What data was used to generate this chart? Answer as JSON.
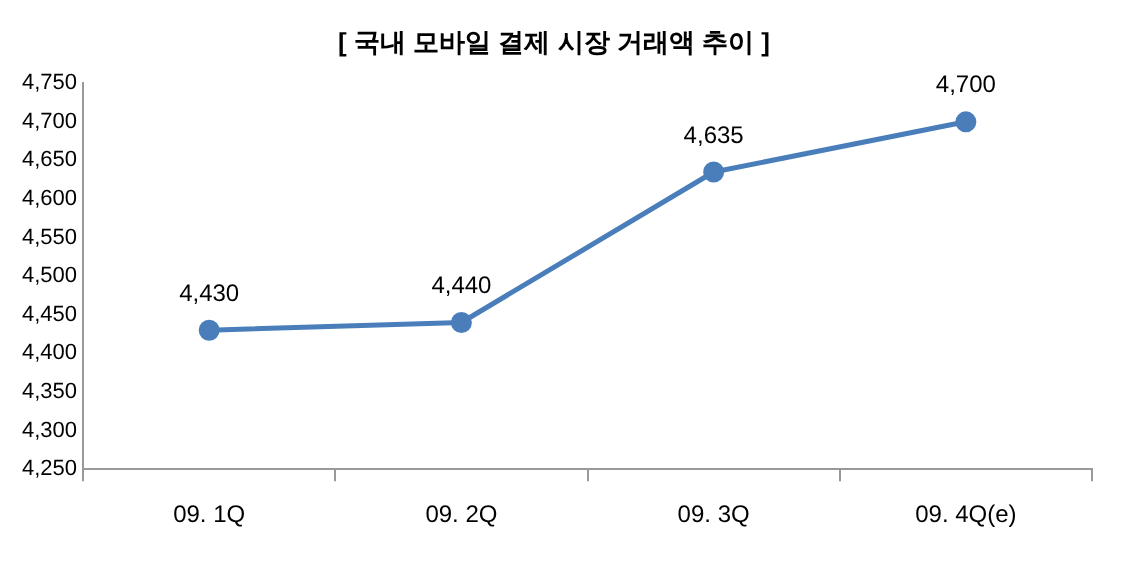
{
  "chart_data": {
    "type": "line",
    "title": "[ 국내 모바일 결제 시장 거래액 추이 ]",
    "categories": [
      "09. 1Q",
      "09. 2Q",
      "09. 3Q",
      "09. 4Q(e)"
    ],
    "series": [
      {
        "color": "#4a7ebb",
        "values": [
          4430,
          4440,
          4635,
          4700
        ]
      }
    ],
    "ylim": [
      4250,
      4750
    ],
    "yticks": [
      {
        "value": 4250,
        "label": "4,250"
      },
      {
        "value": 4300,
        "label": "4,300"
      },
      {
        "value": 4350,
        "label": "4,350"
      },
      {
        "value": 4400,
        "label": "4,400"
      },
      {
        "value": 4450,
        "label": "4,450"
      },
      {
        "value": 4500,
        "label": "4,500"
      },
      {
        "value": 4550,
        "label": "4,550"
      },
      {
        "value": 4600,
        "label": "4,600"
      },
      {
        "value": 4650,
        "label": "4,650"
      },
      {
        "value": 4700,
        "label": "4,700"
      },
      {
        "value": 4750,
        "label": "4,750"
      }
    ],
    "value_labels": [
      "4,430",
      "4,440",
      "4,635",
      "4,700"
    ],
    "grid": false,
    "legend": false,
    "marker": "circle",
    "line_style": "solid"
  }
}
